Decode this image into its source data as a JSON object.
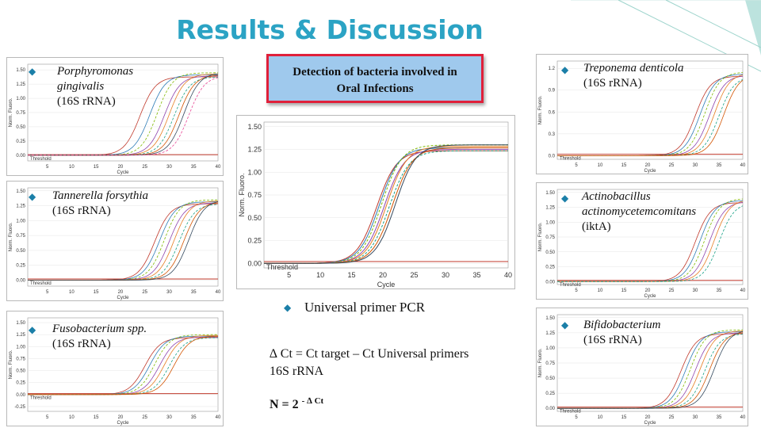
{
  "title": "Results & Discussion",
  "callout": {
    "line1": "Detection of  bacteria involved in",
    "line2": "Oral Infections"
  },
  "universal": "Universal primer PCR",
  "formula": {
    "line1": "∆ Ct = Ct target – Ct Universal primers",
    "line2": "16S rRNA"
  },
  "n_formula": {
    "base": "N = 2",
    "exp": "- ∆ Ct"
  },
  "labels": {
    "porphyromonas": {
      "name_a": "Porphyromonas",
      "name_b": "gingivalis",
      "gene": "(16S rRNA)"
    },
    "tannerella": {
      "name": "Tannerella forsythia",
      "gene": "(16S rRNA)"
    },
    "fusobacterium": {
      "name": "Fusobacterium spp.",
      "gene": "(16S rRNA)"
    },
    "treponema": {
      "name": "Treponema denticola",
      "gene": "(16S rRNA)"
    },
    "actinobacillus": {
      "name_a": "Actinobacillus",
      "name_b": "actinomycetemcomitans",
      "gene": "(iktA)"
    },
    "bifidobacterium": {
      "name": "Bifidobacterium",
      "gene": "(16S rRNA)"
    }
  },
  "common": {
    "threshold": "Threshold",
    "xlabel": "Cycle",
    "ylabel": "Norm. Fluoro.",
    "x_ticks": [
      "5",
      "10",
      "15",
      "20",
      "25",
      "30",
      "35",
      "40"
    ]
  },
  "colors": {
    "title": "#2BA3C4",
    "bullet": "#1b7fa8",
    "callout_bg": "#9fc9ed",
    "callout_border": "#e0203a"
  },
  "chart_data": [
    {
      "id": "center",
      "type": "line",
      "xlabel": "Cycle",
      "ylabel": "Norm. Fluoro.",
      "x_ticks": [
        5,
        10,
        15,
        20,
        25,
        30,
        35,
        40
      ],
      "y_ticks": [
        "0.00",
        "0.25",
        "0.50",
        "0.75",
        "1.00",
        "1.25",
        "1.50"
      ],
      "xlim": [
        1,
        40
      ],
      "ylim": [
        -0.05,
        1.55
      ],
      "threshold": 0.02,
      "midpoints_ct": [
        19,
        19.4,
        19.8,
        20.2,
        20.6,
        21,
        21.5,
        22
      ],
      "plateau": 1.3
    },
    {
      "id": "porphyromonas",
      "type": "line",
      "x_ticks": [
        5,
        10,
        15,
        20,
        25,
        30,
        35,
        40
      ],
      "y_ticks": [
        "0.00",
        "0.25",
        "0.50",
        "0.75",
        "1.00",
        "1.25",
        "1.50"
      ],
      "xlim": [
        1,
        40
      ],
      "ylim": [
        -0.1,
        1.6
      ],
      "threshold": 0.01,
      "midpoints_ct": [
        24,
        26,
        27.5,
        29,
        30,
        31,
        32,
        33,
        34
      ],
      "plateau": 1.45
    },
    {
      "id": "tannerella",
      "type": "line",
      "x_ticks": [
        5,
        10,
        15,
        20,
        25,
        30,
        35,
        40
      ],
      "y_ticks": [
        "0.00",
        "0.25",
        "0.50",
        "0.75",
        "1.00",
        "1.25",
        "1.50"
      ],
      "xlim": [
        1,
        40
      ],
      "ylim": [
        -0.1,
        1.55
      ],
      "threshold": 0.02,
      "midpoints_ct": [
        27,
        28,
        29,
        30,
        31,
        32,
        33,
        34
      ],
      "plateau": 1.35
    },
    {
      "id": "fusobacterium",
      "type": "line",
      "x_ticks": [
        5,
        10,
        15,
        20,
        25,
        30,
        35,
        40
      ],
      "y_ticks": [
        "-0.25",
        "0.00",
        "0.25",
        "0.50",
        "0.75",
        "1.00",
        "1.25",
        "1.50"
      ],
      "xlim": [
        1,
        40
      ],
      "ylim": [
        -0.35,
        1.6
      ],
      "threshold": 0.02,
      "midpoints_ct": [
        25,
        26,
        27,
        28,
        29,
        30,
        31
      ],
      "plateau": 1.25
    },
    {
      "id": "treponema",
      "type": "line",
      "x_ticks": [
        5,
        10,
        15,
        20,
        25,
        30,
        35,
        40
      ],
      "y_ticks": [
        "0.0",
        "0.3",
        "0.6",
        "0.9",
        "1.2"
      ],
      "xlim": [
        1,
        40
      ],
      "ylim": [
        -0.05,
        1.3
      ],
      "threshold": 0.02,
      "midpoints_ct": [
        30,
        31,
        32,
        33,
        34,
        35,
        36
      ],
      "plateau": 1.15
    },
    {
      "id": "actinobacillus",
      "type": "line",
      "x_ticks": [
        5,
        10,
        15,
        20,
        25,
        30,
        35,
        40
      ],
      "y_ticks": [
        "0.00",
        "0.25",
        "0.50",
        "0.75",
        "1.00",
        "1.25",
        "1.50"
      ],
      "xlim": [
        1,
        40
      ],
      "ylim": [
        -0.05,
        1.55
      ],
      "threshold": 0.02,
      "midpoints_ct": [
        30,
        31,
        32,
        33,
        34,
        35
      ],
      "plateau": 1.4
    },
    {
      "id": "bifidobacterium",
      "type": "line",
      "x_ticks": [
        5,
        10,
        15,
        20,
        25,
        30,
        35,
        40
      ],
      "y_ticks": [
        "0.00",
        "0.25",
        "0.50",
        "0.75",
        "1.00",
        "1.25",
        "1.50"
      ],
      "xlim": [
        1,
        40
      ],
      "ylim": [
        -0.05,
        1.55
      ],
      "threshold": 0.02,
      "midpoints_ct": [
        27,
        28,
        29,
        30,
        31,
        32,
        33,
        34
      ],
      "plateau": 1.3
    }
  ]
}
